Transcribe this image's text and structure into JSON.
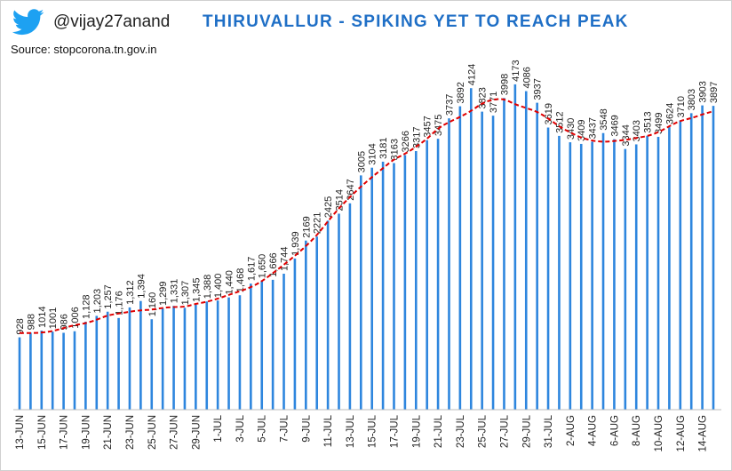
{
  "header": {
    "handle": "@vijay27anand",
    "source": "Source: stopcorona.tn.gov.in",
    "icon": "twitter-bird-icon",
    "brand_color": "#1da1f2"
  },
  "chart_data": {
    "type": "bar",
    "title": "THIRUVALLUR - SPIKING YET TO REACH PEAK",
    "xlabel": "",
    "ylabel": "",
    "ylim": [
      0,
      4400
    ],
    "grid": false,
    "legend": "none",
    "bar_color": "#2e86de",
    "trend_color": "#e00000",
    "trend_style": "dashed",
    "categories": [
      "13-Jun",
      "14-Jun",
      "15-Jun",
      "16-Jun",
      "17-Jun",
      "18-Jun",
      "19-Jun",
      "20-Jun",
      "21-Jun",
      "22-Jun",
      "23-Jun",
      "24-Jun",
      "25-Jun",
      "26-Jun",
      "27-Jun",
      "28-Jun",
      "29-Jun",
      "30-Jun",
      "1-Jul",
      "2-Jul",
      "3-Jul",
      "4-Jul",
      "5-Jul",
      "6-Jul",
      "7-Jul",
      "8-Jul",
      "9-Jul",
      "10-Jul",
      "11-Jul",
      "12-Jul",
      "13-Jul",
      "14-Jul",
      "15-Jul",
      "16-Jul",
      "17-Jul",
      "18-Jul",
      "19-Jul",
      "20-Jul",
      "21-Jul",
      "22-Jul",
      "23-Jul",
      "24-Jul",
      "25-Jul",
      "26-Jul",
      "27-Jul",
      "28-Jul",
      "29-Jul",
      "30-Jul",
      "31-Jul",
      "1-Aug",
      "2-Aug",
      "3-Aug",
      "4-Aug",
      "5-Aug",
      "6-Aug",
      "7-Aug",
      "8-Aug",
      "9-Aug",
      "10-Aug",
      "11-Aug",
      "12-Aug",
      "13-Aug",
      "14-Aug",
      "15-Aug"
    ],
    "value_labels": [
      "928",
      "988",
      "1014",
      "1001",
      "986",
      "1006",
      "1,128",
      "1,203",
      "1,257",
      "1,176",
      "1,312",
      "1,394",
      "1,160",
      "1,299",
      "1,331",
      "1,307",
      "1,345",
      "1,388",
      "1,400",
      "1,440",
      "1,468",
      "1,617",
      "1,650",
      "1,666",
      "1,744",
      "1,939",
      "2169",
      "2221",
      "2425",
      "2514",
      "2647",
      "3005",
      "3104",
      "3181",
      "3163",
      "3266",
      "3317",
      "3457",
      "3475",
      "3737",
      "3892",
      "4124",
      "3823",
      "3771",
      "3998",
      "4173",
      "4086",
      "3937",
      "3619",
      "3512",
      "3430",
      "3409",
      "3437",
      "3548",
      "3469",
      "3344",
      "3403",
      "3513",
      "3499",
      "3624",
      "3710",
      "3803",
      "3903",
      "3897"
    ],
    "values": [
      928,
      988,
      1014,
      1001,
      986,
      1006,
      1128,
      1203,
      1257,
      1176,
      1312,
      1394,
      1160,
      1299,
      1331,
      1307,
      1345,
      1388,
      1400,
      1440,
      1468,
      1617,
      1650,
      1666,
      1744,
      1939,
      2169,
      2221,
      2425,
      2514,
      2647,
      3005,
      3104,
      3181,
      3163,
      3266,
      3317,
      3457,
      3475,
      3737,
      3892,
      4124,
      3823,
      3771,
      3998,
      4173,
      4086,
      3937,
      3619,
      3512,
      3430,
      3409,
      3437,
      3548,
      3469,
      3344,
      3403,
      3513,
      3499,
      3624,
      3710,
      3803,
      3903,
      3897
    ],
    "tick_labels": [
      "13-JUN",
      "15-JUN",
      "17-JUN",
      "19-JUN",
      "21-JUN",
      "23-JUN",
      "25-JUN",
      "27-JUN",
      "29-JUN",
      "1-JUL",
      "3-JUL",
      "5-JUL",
      "7-JUL",
      "9-JUL",
      "11-JUL",
      "13-JUL",
      "15-JUL",
      "17-JUL",
      "19-JUL",
      "21-JUL",
      "23-JUL",
      "25-JUL",
      "27-JUL",
      "29-JUL",
      "31-JUL",
      "2-AUG",
      "4-AUG",
      "6-AUG",
      "8-AUG",
      "10-AUG",
      "12-AUG",
      "14-AUG"
    ]
  }
}
